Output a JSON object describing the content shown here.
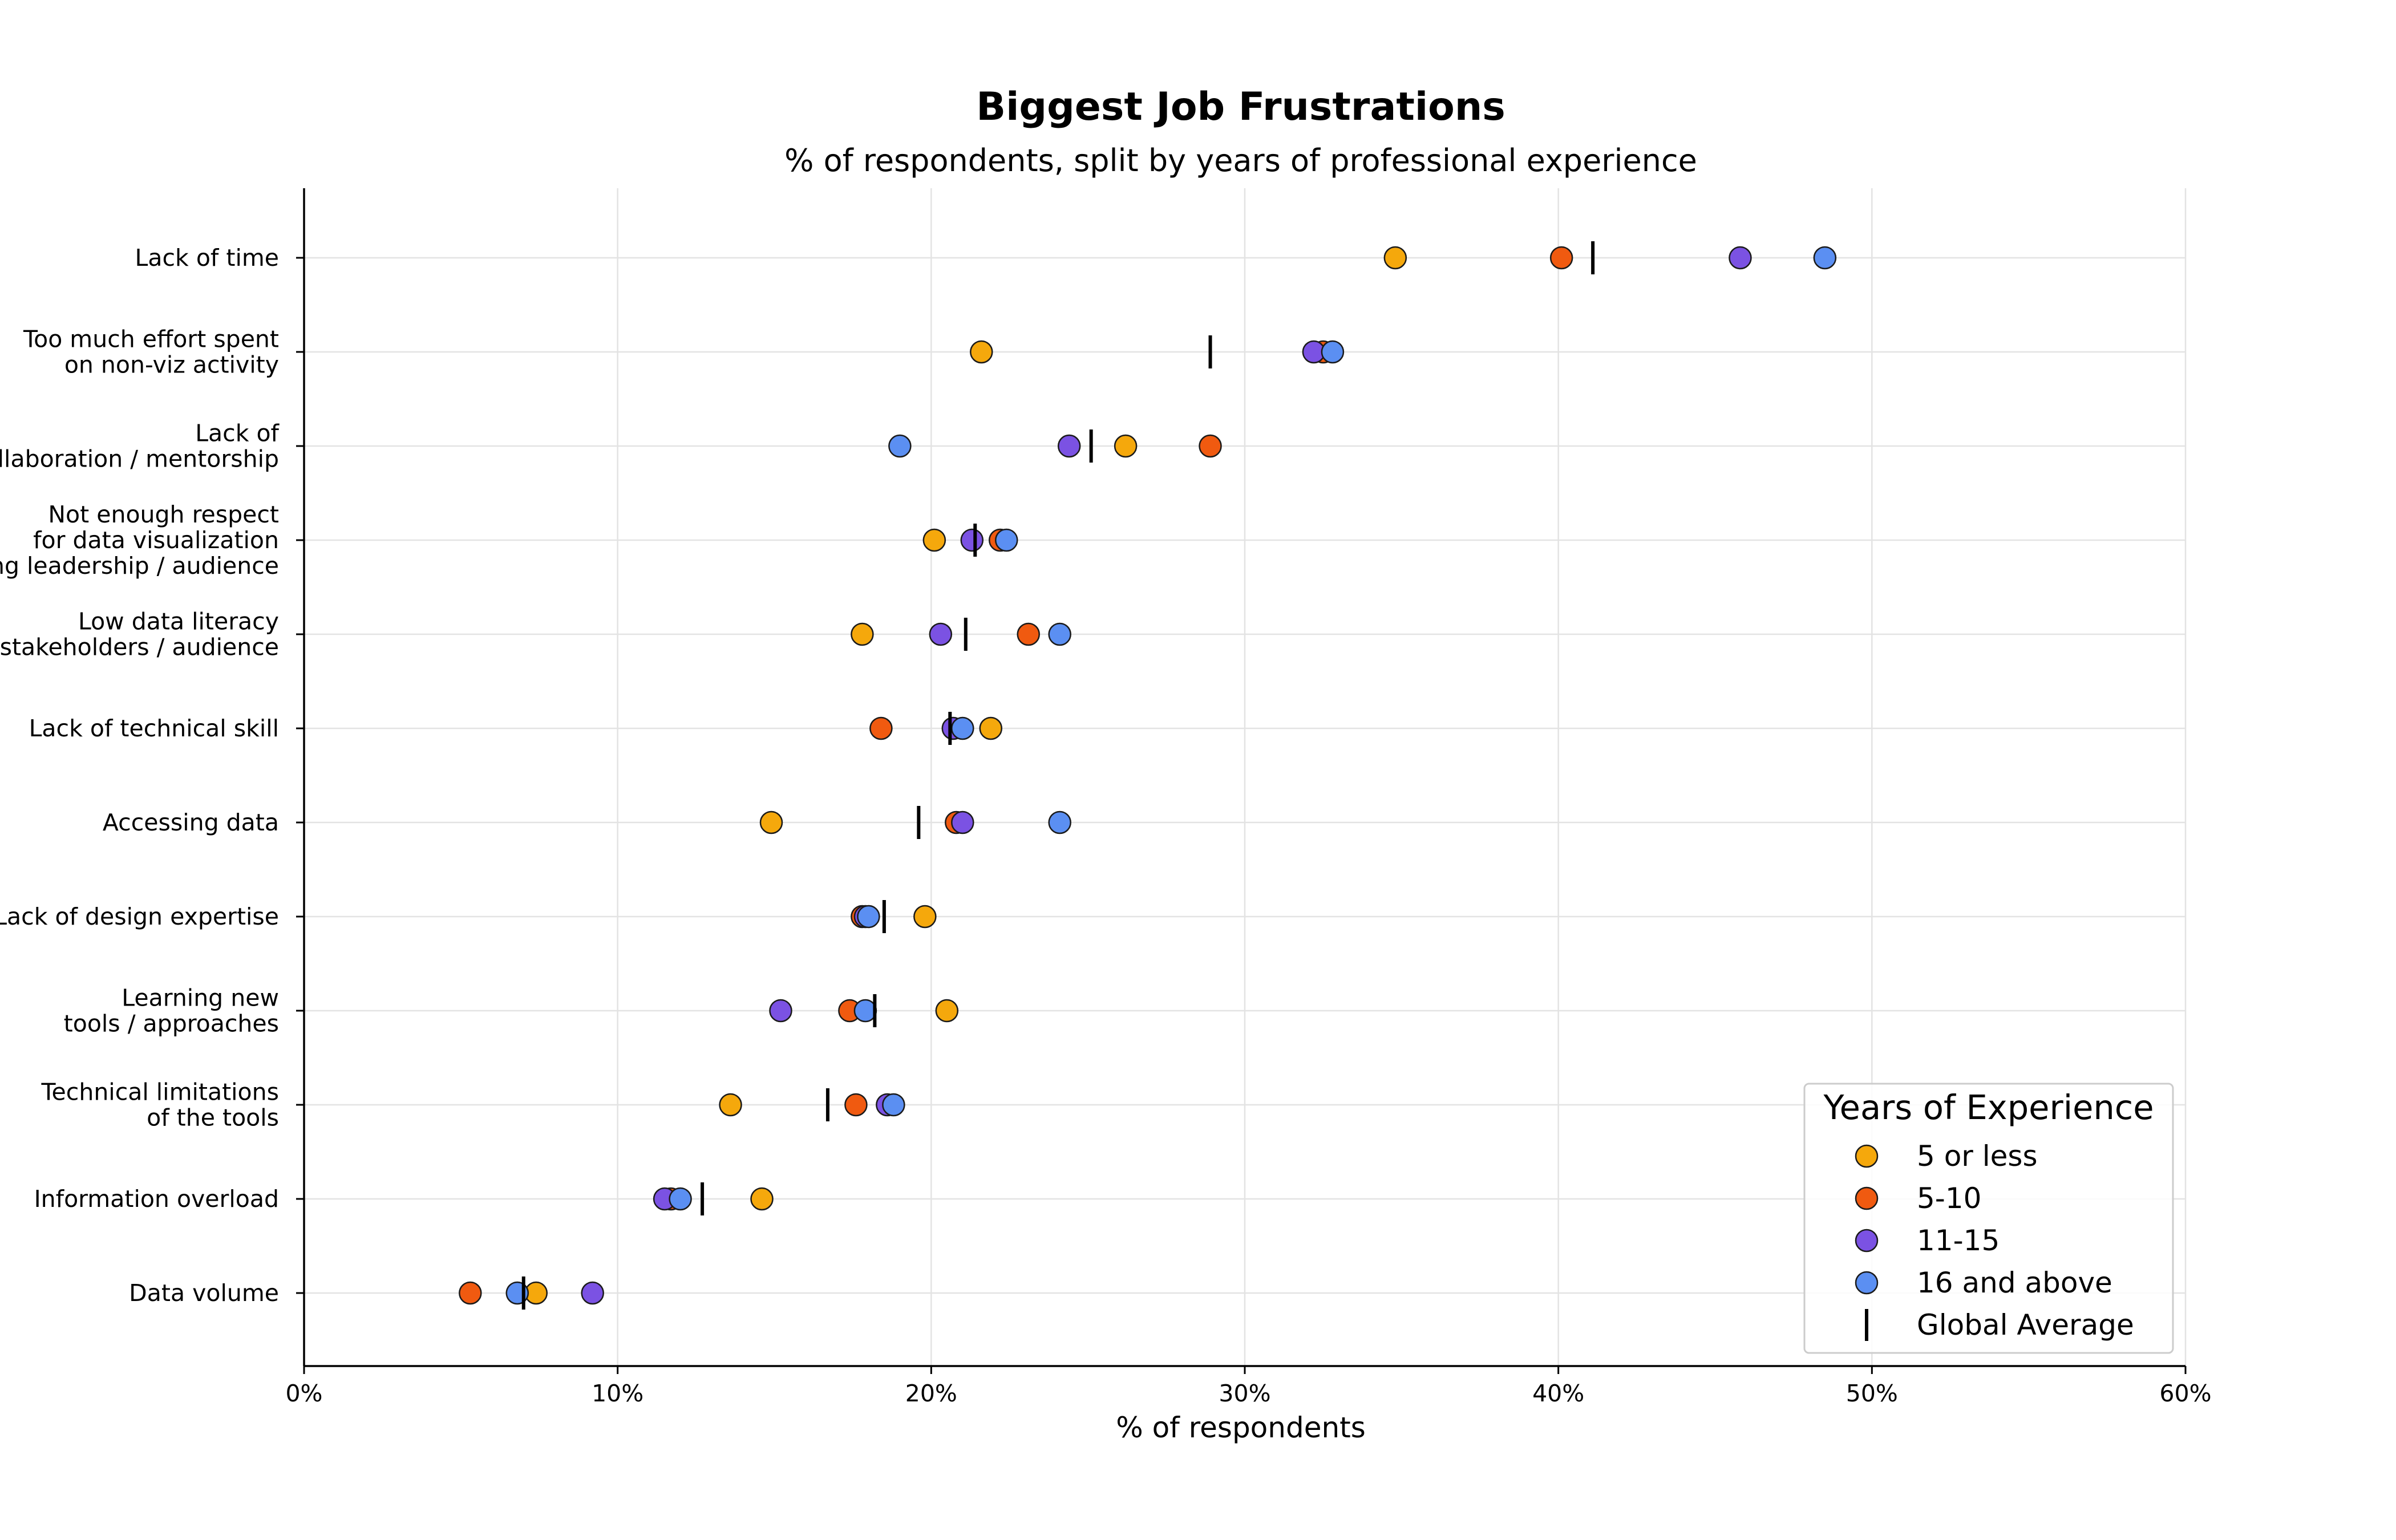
{
  "chart_data": {
    "type": "scatter",
    "title": "Biggest Job Frustrations",
    "subtitle": "% of respondents, split by years of professional experience",
    "xlabel": "% of respondents",
    "ylabel": "",
    "xlim": [
      0,
      60
    ],
    "x_ticks": [
      "0%",
      "10%",
      "20%",
      "30%",
      "40%",
      "50%",
      "60%"
    ],
    "grid": true,
    "legend": {
      "title": "Years of Experience",
      "placement": "lower-right"
    },
    "categories": [
      "Lack of time",
      "Too much effort spent\non non-viz activity",
      "Lack of\ncollaboration / mentorship",
      "Not enough respect\nfor data visualization\namong leadership / audience",
      "Low data literacy\nof stakeholders / audience",
      "Lack of technical skill",
      "Accessing data",
      "Lack of design expertise",
      "Learning new\ntools / approaches",
      "Technical limitations\nof the tools",
      "Information overload",
      "Data volume"
    ],
    "series": [
      {
        "name": "5 or less",
        "color": "#f5a80c",
        "marker": "circle",
        "values": [
          34.8,
          21.6,
          26.2,
          20.1,
          17.8,
          21.9,
          14.9,
          19.8,
          20.5,
          13.6,
          14.6,
          7.4
        ]
      },
      {
        "name": "5-10",
        "color": "#f05a10",
        "marker": "circle",
        "values": [
          40.1,
          32.5,
          28.9,
          22.2,
          23.1,
          18.4,
          20.8,
          17.8,
          17.4,
          17.6,
          11.7,
          5.3
        ]
      },
      {
        "name": "11-15",
        "color": "#7b52e3",
        "marker": "circle",
        "values": [
          45.8,
          32.2,
          24.4,
          21.3,
          20.3,
          20.7,
          21.0,
          17.9,
          15.2,
          18.6,
          11.5,
          9.2
        ]
      },
      {
        "name": "16 and above",
        "color": "#5b8ff2",
        "marker": "circle",
        "values": [
          48.5,
          32.8,
          19.0,
          22.4,
          24.1,
          21.0,
          24.1,
          18.0,
          17.9,
          18.8,
          12.0,
          6.8
        ]
      },
      {
        "name": "Global Average",
        "color": "#000000",
        "marker": "vline",
        "values": [
          41.1,
          28.9,
          25.1,
          21.4,
          21.1,
          20.6,
          19.6,
          18.5,
          18.2,
          16.7,
          12.7,
          7.0
        ]
      }
    ]
  }
}
